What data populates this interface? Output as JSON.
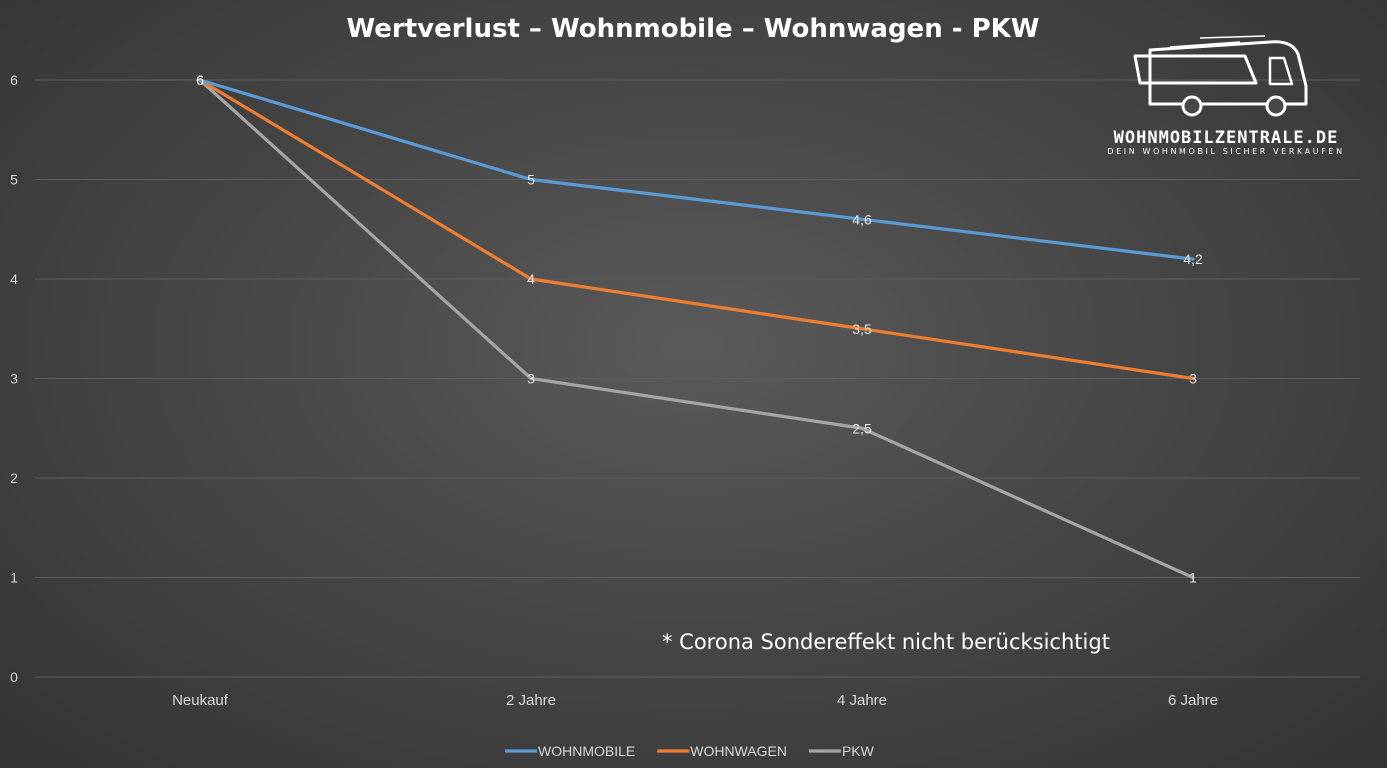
{
  "chart_data": {
    "type": "line",
    "title": "Wertverlust – Wohnmobile – Wohnwagen - PKW",
    "categories": [
      "Neukauf",
      "2 Jahre",
      "4 Jahre",
      "6 Jahre"
    ],
    "ylim": [
      0,
      6
    ],
    "yticks": [
      "0",
      "1",
      "2",
      "3",
      "4",
      "5",
      "6"
    ],
    "grid": true,
    "legend": "bottom",
    "series": [
      {
        "name": "WOHNMOBILE",
        "color": "#5b9bd5",
        "values": [
          6,
          5,
          4.6,
          4.2
        ],
        "labels": [
          "6",
          "5",
          "4,6",
          "4,2"
        ]
      },
      {
        "name": "WOHNWAGEN",
        "color": "#ed7d31",
        "values": [
          6,
          4,
          3.5,
          3
        ],
        "labels": [
          "6",
          "4",
          "3,5",
          "3"
        ]
      },
      {
        "name": "PKW",
        "color": "#a5a5a5",
        "values": [
          6,
          3,
          2.5,
          1
        ],
        "labels": [
          "6",
          "3",
          "2,5",
          "1"
        ]
      }
    ],
    "annotation": "* Corona Sondereffekt nicht berücksichtigt"
  },
  "logo": {
    "name": "WOHNMOBILZENTRALE.DE",
    "tagline": "DEIN WOHNMOBIL SICHER VERKAUFEN",
    "icon": "camper-van-icon"
  }
}
